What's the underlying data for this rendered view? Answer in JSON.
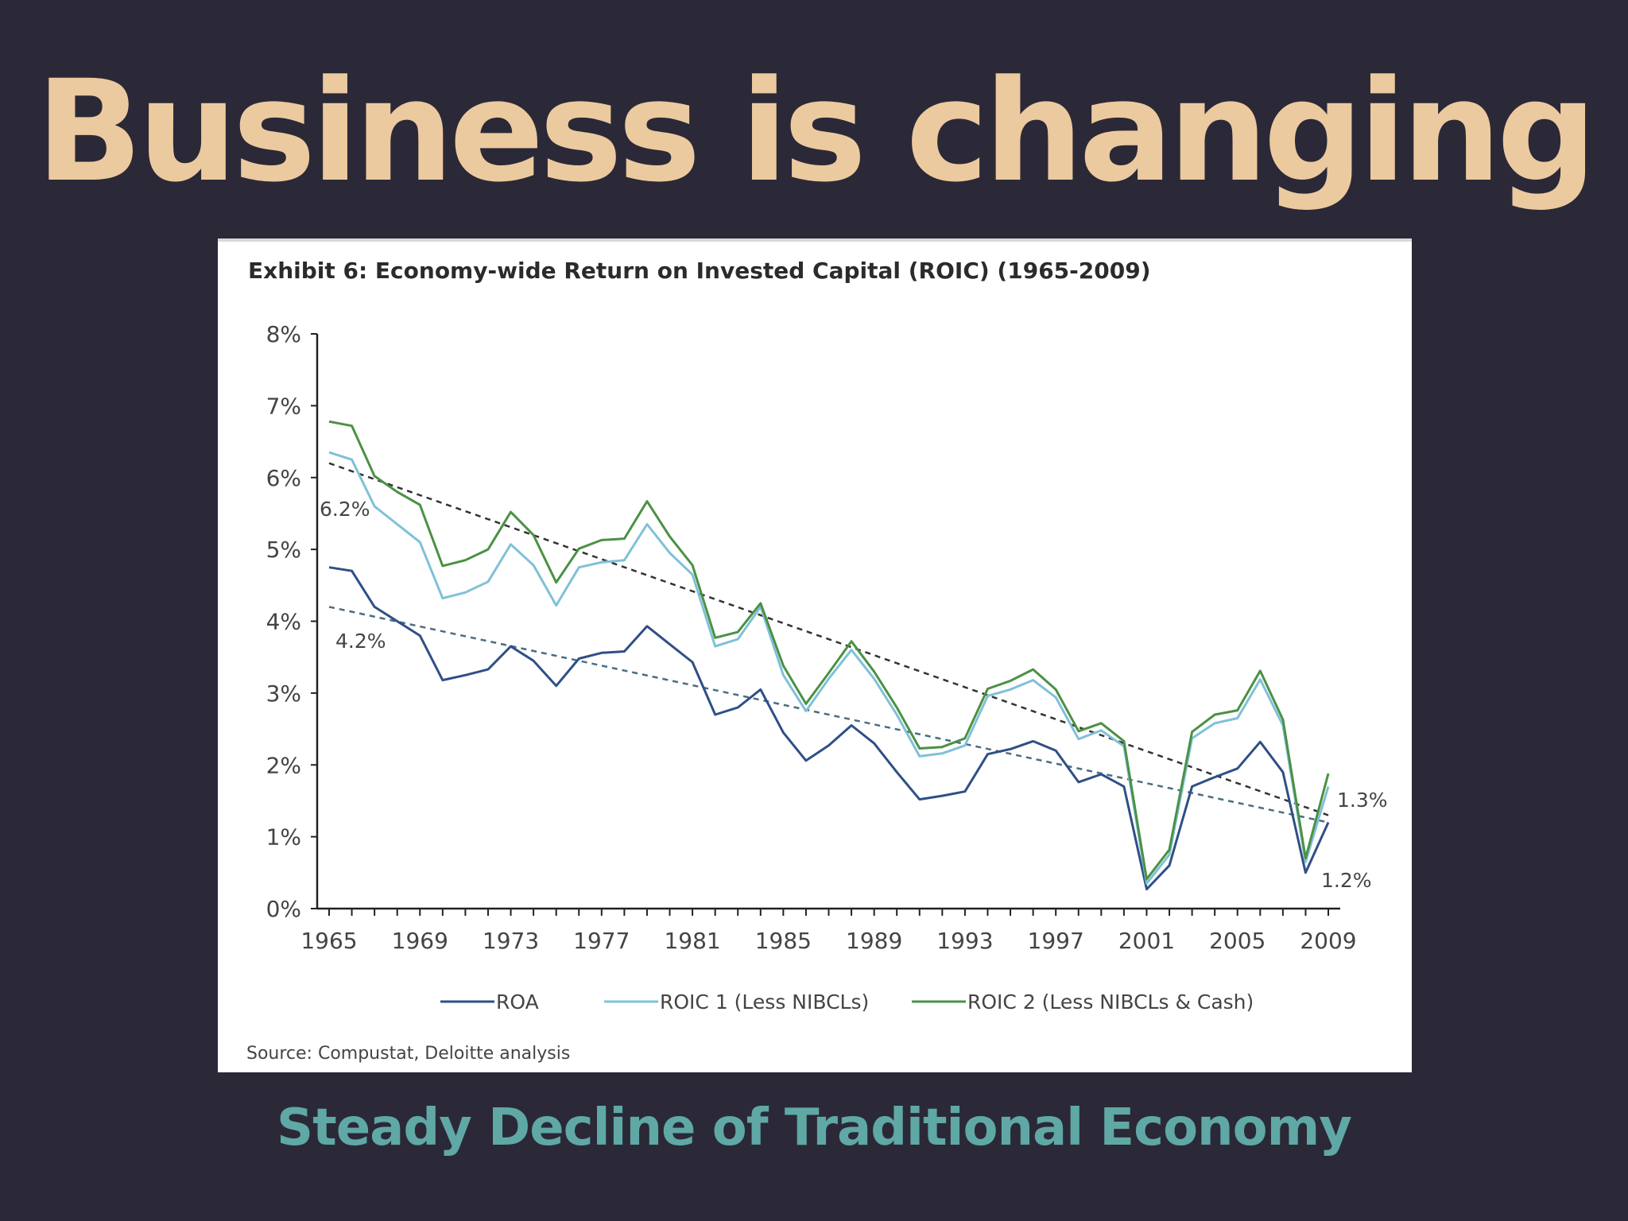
{
  "slide": {
    "title": "Business is changing",
    "subtitle": "Steady Decline of Traditional Economy"
  },
  "colors": {
    "background": "#2b2937",
    "title": "#ecca9f",
    "subtitle": "#5fa8a5",
    "roa": "#2f4f86",
    "roic1": "#7fc1d8",
    "roic2": "#4b9144",
    "trend_upper": "#333333",
    "trend_lower": "#4a6d82"
  },
  "chart_data": {
    "type": "line",
    "title": "Exhibit 6:  Economy-wide Return on Invested Capital (ROIC) (1965-2009)",
    "source": "Source: Compustat, Deloitte analysis",
    "xlabel": "",
    "ylabel": "",
    "xlim": [
      1965,
      2009
    ],
    "ylim": [
      0,
      8
    ],
    "x_ticks": [
      1965,
      1969,
      1973,
      1977,
      1981,
      1985,
      1989,
      1993,
      1997,
      2001,
      2005,
      2009
    ],
    "y_ticks": [
      "0%",
      "1%",
      "2%",
      "3%",
      "4%",
      "5%",
      "6%",
      "7%",
      "8%"
    ],
    "legend_position": "bottom",
    "grid": false,
    "x": [
      1965,
      1966,
      1967,
      1968,
      1969,
      1970,
      1971,
      1972,
      1973,
      1974,
      1975,
      1976,
      1977,
      1978,
      1979,
      1980,
      1981,
      1982,
      1983,
      1984,
      1985,
      1986,
      1987,
      1988,
      1989,
      1990,
      1991,
      1992,
      1993,
      1994,
      1995,
      1996,
      1997,
      1998,
      1999,
      2000,
      2001,
      2002,
      2003,
      2004,
      2005,
      2006,
      2007,
      2008,
      2009
    ],
    "series": [
      {
        "name": "ROA",
        "values": [
          4.75,
          4.7,
          4.2,
          4.0,
          3.8,
          3.18,
          3.25,
          3.33,
          3.65,
          3.45,
          3.1,
          3.48,
          3.56,
          3.58,
          3.93,
          3.68,
          3.43,
          2.7,
          2.8,
          3.05,
          2.45,
          2.06,
          2.27,
          2.55,
          2.3,
          1.9,
          1.52,
          1.57,
          1.63,
          2.15,
          2.22,
          2.33,
          2.2,
          1.76,
          1.87,
          1.7,
          0.27,
          0.6,
          1.7,
          1.83,
          1.95,
          2.32,
          1.9,
          0.5,
          1.2
        ]
      },
      {
        "name": "ROIC 1 (Less NIBCLs)",
        "values": [
          6.35,
          6.25,
          5.6,
          5.35,
          5.1,
          4.32,
          4.4,
          4.55,
          5.07,
          4.78,
          4.22,
          4.75,
          4.82,
          4.85,
          5.35,
          4.95,
          4.65,
          3.65,
          3.75,
          4.2,
          3.25,
          2.75,
          3.2,
          3.6,
          3.2,
          2.7,
          2.12,
          2.16,
          2.27,
          2.96,
          3.05,
          3.18,
          2.94,
          2.36,
          2.48,
          2.26,
          0.35,
          0.75,
          2.37,
          2.58,
          2.65,
          3.19,
          2.55,
          0.65,
          1.7
        ]
      },
      {
        "name": "ROIC 2 (Less NIBCLs & Cash)",
        "values": [
          6.78,
          6.72,
          6.02,
          5.8,
          5.62,
          4.77,
          4.85,
          5.0,
          5.52,
          5.2,
          4.54,
          5.01,
          5.13,
          5.15,
          5.67,
          5.18,
          4.78,
          3.77,
          3.85,
          4.25,
          3.38,
          2.85,
          3.28,
          3.72,
          3.3,
          2.8,
          2.23,
          2.25,
          2.37,
          3.06,
          3.17,
          3.33,
          3.05,
          2.47,
          2.58,
          2.33,
          0.41,
          0.82,
          2.46,
          2.7,
          2.76,
          3.31,
          2.63,
          0.7,
          1.88
        ]
      }
    ],
    "trend_lines": [
      {
        "from": [
          1965,
          6.2
        ],
        "to": [
          2009,
          1.3
        ],
        "start_label": "6.2%",
        "end_label": "1.3%"
      },
      {
        "from": [
          1965,
          4.2
        ],
        "to": [
          2009,
          1.2
        ],
        "start_label": "4.2%",
        "end_label": "1.2%"
      }
    ]
  }
}
